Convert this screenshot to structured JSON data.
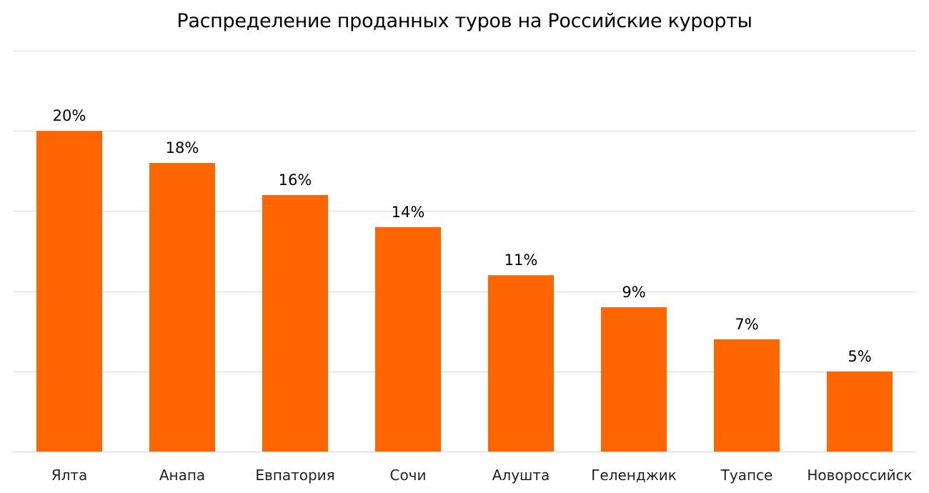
{
  "chart_data": {
    "type": "bar",
    "title": "Распределение проданных туров на Российские  курорты",
    "categories": [
      "Ялта",
      "Анапа",
      "Евпатория",
      "Сочи",
      "Алушта",
      "Геленджик",
      "Туапсе",
      "Новороссийск"
    ],
    "values": [
      20,
      18,
      16,
      14,
      11,
      9,
      7,
      5
    ],
    "data_labels": [
      "20%",
      "18%",
      "16%",
      "14%",
      "11%",
      "9%",
      "7%",
      "5%"
    ],
    "unit": "%",
    "ylim": [
      0,
      25
    ],
    "y_gridline_step": 5,
    "grid": true,
    "y_axis_labels_shown": false,
    "legend": "none",
    "bar_color": "#FF6600",
    "gridline_color": "#D9D9D9"
  }
}
